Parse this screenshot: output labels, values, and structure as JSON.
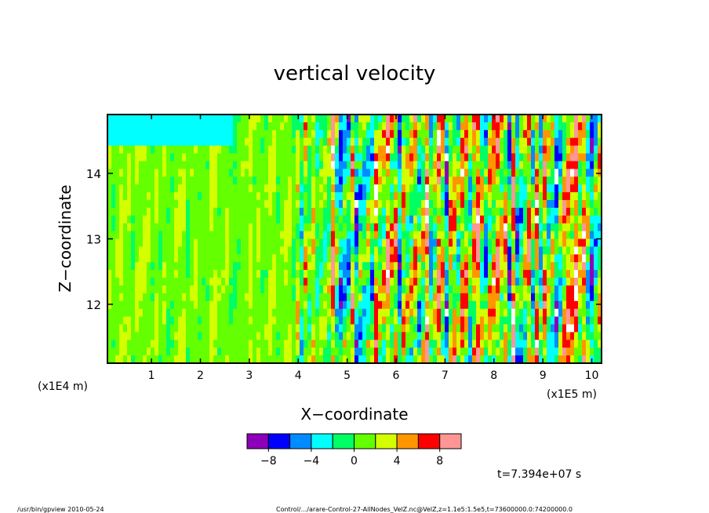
{
  "chart_data": {
    "type": "heatmap",
    "title": "vertical velocity",
    "xlabel": "X−coordinate",
    "ylabel": "Z−coordinate",
    "x_unit_left": "(x1E4 m)",
    "x_unit_right": "(x1E5 m)",
    "x_ticks": [
      "1",
      "2",
      "3",
      "4",
      "5",
      "6",
      "7",
      "8",
      "9",
      "10"
    ],
    "y_ticks": [
      "12",
      "13",
      "14"
    ],
    "xlim": [
      0.1,
      10.2
    ],
    "ylim": [
      11.1,
      14.9
    ],
    "colorbar": {
      "colors": [
        "#8b00b8",
        "#0000ff",
        "#008cff",
        "#00ffff",
        "#00ff64",
        "#64ff00",
        "#d4ff00",
        "#ff9600",
        "#ff0000",
        "#ff9696"
      ],
      "tick_labels": [
        "−8",
        "−4",
        "0",
        "4",
        "8"
      ],
      "tick_values": [
        -8,
        -4,
        0,
        4,
        8
      ],
      "range": [
        -10,
        10
      ]
    },
    "time_label": "t=7.394e+07 s"
  },
  "footer": {
    "left": "/usr/bin/gpview   2010-05-24",
    "right": "Control/.../arare-Control-27-AllNodes_VelZ.nc@VelZ,z=1.1e5:1.5e5,t=73600000.0:74200000.0"
  }
}
